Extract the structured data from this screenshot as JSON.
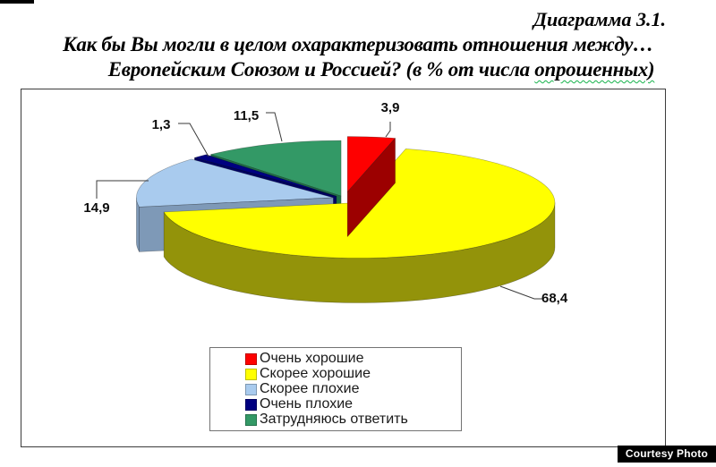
{
  "header": {
    "title": "Диаграмма 3.1.",
    "question_line1": "Как бы Вы могли в целом охарактеризовать отношения между…",
    "question_line2_prefix": "Европейским Союзом и Россией? (в % от числа ",
    "question_line2_underlined": "опрошенных)"
  },
  "chart_data": {
    "type": "pie",
    "style": "3d-exploded-pie",
    "title": "Диаграмма 3.1. Как бы Вы могли в целом охарактеризовать отношения между… Европейским Союзом и Россией? (в % от числа опрошенных)",
    "unit": "% от числа опрошенных",
    "categories": [
      "Очень хорошие",
      "Скорее хорошие",
      "Скорее плохие",
      "Очень плохие",
      "Затрудняюсь ответить"
    ],
    "series": [
      {
        "label": "Очень хорошие",
        "value": 3.9,
        "display": "3,9",
        "color": "#FE0000",
        "side_color": "#9C0000"
      },
      {
        "label": "Скорее хорошие",
        "value": 68.4,
        "display": "68,4",
        "color": "#FFFF00",
        "side_color": "#93930A"
      },
      {
        "label": "Скорее плохие",
        "value": 14.9,
        "display": "14,9",
        "color": "#A9CBEE",
        "side_color": "#7E99B7"
      },
      {
        "label": "Очень плохие",
        "value": 1.3,
        "display": "1,3",
        "color": "#000080",
        "side_color": "#000061"
      },
      {
        "label": "Затрудняюсь ответить",
        "value": 11.5,
        "display": "11,5",
        "color": "#339966",
        "side_color": "#1F6F47"
      }
    ],
    "exploded_slice": "Очень хорошие",
    "legend_position": "bottom",
    "start_angle_deg": 0,
    "clockwise": true,
    "labels_format": "comma-decimal"
  },
  "badge": {
    "text": "Courtesy Photo"
  }
}
